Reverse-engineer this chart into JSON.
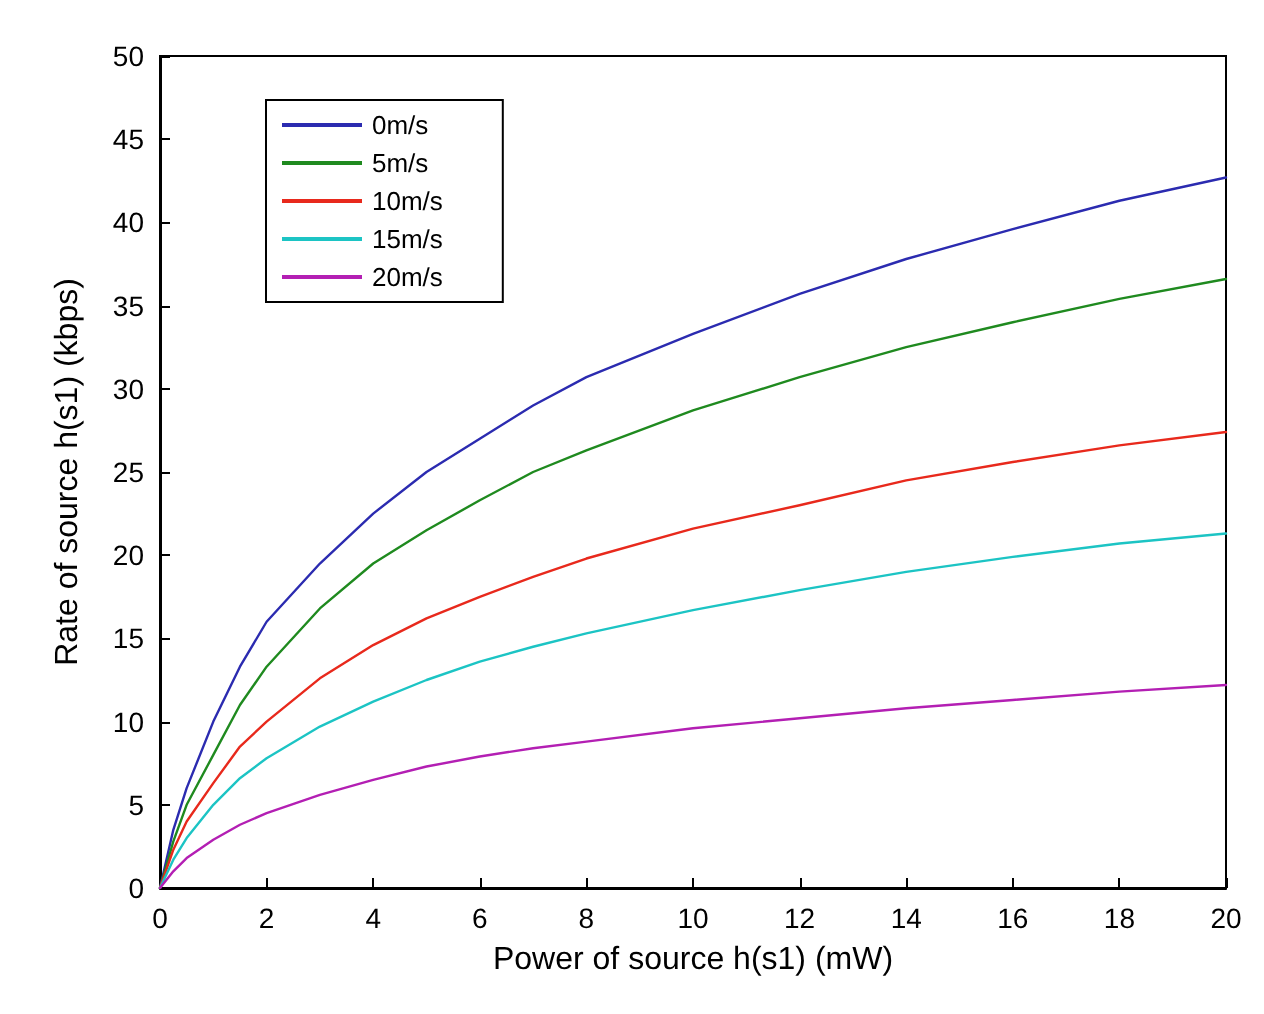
{
  "chart_data": {
    "type": "line",
    "xlabel": "Power of source h(s1) (mW)",
    "ylabel": "Rate of source h(s1) (kbps)",
    "x": [
      0,
      0.25,
      0.5,
      1,
      1.5,
      2,
      3,
      4,
      5,
      6,
      7,
      8,
      10,
      12,
      14,
      16,
      18,
      20
    ],
    "series": [
      {
        "name": "0m/s",
        "color": "#2b2bb0",
        "values": [
          0,
          3.5,
          6,
          10,
          13.3,
          16,
          19.5,
          22.5,
          25,
          27,
          29,
          30.7,
          33.3,
          35.7,
          37.8,
          39.6,
          41.3,
          42.7
        ]
      },
      {
        "name": "5m/s",
        "color": "#1f8a1f",
        "values": [
          0,
          2.8,
          5,
          8,
          11,
          13.3,
          16.8,
          19.5,
          21.5,
          23.3,
          25,
          26.3,
          28.7,
          30.7,
          32.5,
          34,
          35.4,
          36.6
        ]
      },
      {
        "name": "10m/s",
        "color": "#e8291c",
        "values": [
          0,
          2.3,
          4,
          6.3,
          8.5,
          10,
          12.6,
          14.6,
          16.2,
          17.5,
          18.7,
          19.8,
          21.6,
          23,
          24.5,
          25.6,
          26.6,
          27.4
        ]
      },
      {
        "name": "15m/s",
        "color": "#1cc4c4",
        "values": [
          0,
          1.7,
          3,
          5,
          6.6,
          7.8,
          9.7,
          11.2,
          12.5,
          13.6,
          14.5,
          15.3,
          16.7,
          17.9,
          19,
          19.9,
          20.7,
          21.3
        ]
      },
      {
        "name": "20m/s",
        "color": "#b31fb3",
        "values": [
          0,
          1,
          1.8,
          2.9,
          3.8,
          4.5,
          5.6,
          6.5,
          7.3,
          7.9,
          8.4,
          8.8,
          9.6,
          10.2,
          10.8,
          11.3,
          11.8,
          12.2
        ]
      }
    ],
    "xlim": [
      0,
      20
    ],
    "xticks": [
      0,
      2,
      4,
      6,
      8,
      10,
      12,
      14,
      16,
      18,
      20
    ],
    "ylim": [
      0,
      50
    ],
    "yticks": [
      0,
      5,
      10,
      15,
      20,
      25,
      30,
      35,
      40,
      45,
      50
    ],
    "legend": "top left",
    "grid": false,
    "marker": "none",
    "line_style": "solid"
  }
}
